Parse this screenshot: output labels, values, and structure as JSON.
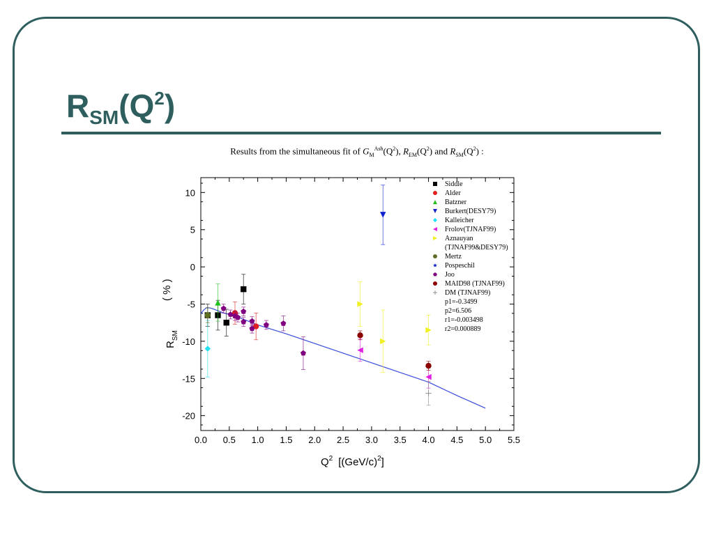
{
  "slide": {
    "title_main": "R",
    "title_sub": "SM",
    "title_paren_open": "(Q",
    "title_sup": "2",
    "title_paren_close": ")",
    "caption_lead": "Results from the simultaneous fit of",
    "caption_g": "G",
    "caption_g_sub": "M",
    "caption_g_sup": "Ash",
    "caption_q1": "(Q",
    "caption_q1_sup": "2",
    "caption_q1_close": "),",
    "caption_rem": "R",
    "caption_rem_sub": "EM",
    "caption_q2": "(Q",
    "caption_q2_sup": "2",
    "caption_q2_close": ") and",
    "caption_rsm": "R",
    "caption_rsm_sub": "SM",
    "caption_q3": "(Q",
    "caption_q3_sup": "2",
    "caption_q3_close": ") :"
  },
  "chart_data": {
    "type": "scatter",
    "xlabel_main": "Q",
    "xlabel_sup": "2",
    "xlabel_unit": "[(GeV/c)",
    "xlabel_unit_sup": "2",
    "xlabel_unit_close": "]",
    "ylabel_main": "R",
    "ylabel_sub": "SM",
    "ylabel_unit": "( % )",
    "xlim": [
      0.0,
      5.5
    ],
    "ylim": [
      -22,
      12
    ],
    "xticks": [
      "0.0",
      "0.5",
      "1.0",
      "1.5",
      "2.0",
      "2.5",
      "3.0",
      "3.5",
      "4.0",
      "4.5",
      "5.0",
      "5.5"
    ],
    "yticks": [
      "10",
      "5",
      "0",
      "-5",
      "-10",
      "-15",
      "-20"
    ],
    "colors": {
      "axis": "#000000",
      "fit": "#3a4bdc"
    },
    "series": [
      {
        "name": "Siddle",
        "marker": "square",
        "color": "#000000",
        "points": [
          {
            "x": 0.12,
            "y": -6.5,
            "e": 1.5
          },
          {
            "x": 0.3,
            "y": -6.5,
            "e": 2.0
          },
          {
            "x": 0.45,
            "y": -7.5,
            "e": 1.8
          },
          {
            "x": 0.75,
            "y": -3.0,
            "e": 2.0
          }
        ]
      },
      {
        "name": "Alder",
        "marker": "circle",
        "color": "#e02020",
        "points": [
          {
            "x": 0.6,
            "y": -6.2,
            "e": 1.5
          },
          {
            "x": 0.97,
            "y": -8.0,
            "e": 1.8
          }
        ]
      },
      {
        "name": "Batzner",
        "marker": "triangle-up",
        "color": "#20c020",
        "points": [
          {
            "x": 0.3,
            "y": -4.8,
            "e": 2.5
          }
        ]
      },
      {
        "name": "Burkert(DESY79)",
        "marker": "triangle-down",
        "color": "#1020d0",
        "points": [
          {
            "x": 3.2,
            "y": 7.0,
            "e": 4.0
          }
        ]
      },
      {
        "name": "Kalleicher",
        "marker": "diamond",
        "color": "#20e0f0",
        "points": [
          {
            "x": 0.12,
            "y": -11.0,
            "e": 3.8
          }
        ]
      },
      {
        "name": "Frolov(TJNAF99)",
        "marker": "triangle-left",
        "color": "#e020e0",
        "points": [
          {
            "x": 2.8,
            "y": -11.2,
            "e": 1.5
          },
          {
            "x": 4.0,
            "y": -14.8,
            "e": 1.5
          }
        ]
      },
      {
        "name": "Aznauyan",
        "marker": "triangle-right",
        "color": "#f0f020",
        "points": [
          {
            "x": 2.8,
            "y": -5.0,
            "e": 3.0
          },
          {
            "x": 3.2,
            "y": -10.0,
            "e": 4.2
          },
          {
            "x": 4.0,
            "y": -8.5,
            "e": 2.0
          }
        ]
      },
      {
        "name": "Mertz",
        "marker": "circle",
        "color": "#607020",
        "points": [
          {
            "x": 0.12,
            "y": -6.5,
            "e": 1.0
          }
        ]
      },
      {
        "name": "Pospeschil",
        "marker": "star",
        "color": "#1020d0",
        "points": []
      },
      {
        "name": "Joo",
        "marker": "pentagon",
        "color": "#800080",
        "points": [
          {
            "x": 0.4,
            "y": -5.6,
            "e": 0.6
          },
          {
            "x": 0.52,
            "y": -6.4,
            "e": 0.6
          },
          {
            "x": 0.6,
            "y": -6.6,
            "e": 0.6
          },
          {
            "x": 0.65,
            "y": -6.8,
            "e": 0.6
          },
          {
            "x": 0.75,
            "y": -7.4,
            "e": 0.6
          },
          {
            "x": 0.75,
            "y": -6.0,
            "e": 0.6
          },
          {
            "x": 0.9,
            "y": -7.3,
            "e": 0.6
          },
          {
            "x": 0.9,
            "y": -8.3,
            "e": 0.6
          },
          {
            "x": 1.15,
            "y": -7.8,
            "e": 0.6
          },
          {
            "x": 1.45,
            "y": -7.6,
            "e": 1.0
          },
          {
            "x": 1.8,
            "y": -11.6,
            "e": 2.2
          }
        ]
      },
      {
        "name": "MAID98 (TJNAF99)",
        "marker": "circle",
        "color": "#8b0000",
        "points": [
          {
            "x": 2.8,
            "y": -9.2,
            "e": 0.6
          },
          {
            "x": 4.0,
            "y": -13.3,
            "e": 0.6
          }
        ]
      },
      {
        "name": "DM (TJNAF99)",
        "marker": "plus",
        "color": "#909090",
        "points": [
          {
            "x": 4.0,
            "y": -17.0,
            "e": 1.6
          }
        ]
      }
    ],
    "legend_extra": [
      "(TJNAF99&DESY79)",
      "p1=-0.3499",
      "p2=6.506",
      "r1=-0.003498",
      "r2=0.000889"
    ],
    "fit_curve": {
      "x": [
        0.0,
        0.05,
        0.1,
        0.15,
        0.2,
        0.3,
        0.4,
        0.5,
        0.6,
        0.7,
        0.8,
        1.0,
        1.5,
        2.0,
        2.5,
        3.0,
        3.5,
        4.0,
        4.5,
        5.0
      ],
      "y": [
        -6.3,
        -5.8,
        -5.5,
        -5.5,
        -5.6,
        -5.9,
        -6.2,
        -6.4,
        -6.7,
        -6.9,
        -7.2,
        -7.8,
        -9.0,
        -10.3,
        -11.6,
        -12.9,
        -14.2,
        -15.5,
        -17.3,
        -19.0
      ]
    },
    "legend_position": "top-right"
  }
}
